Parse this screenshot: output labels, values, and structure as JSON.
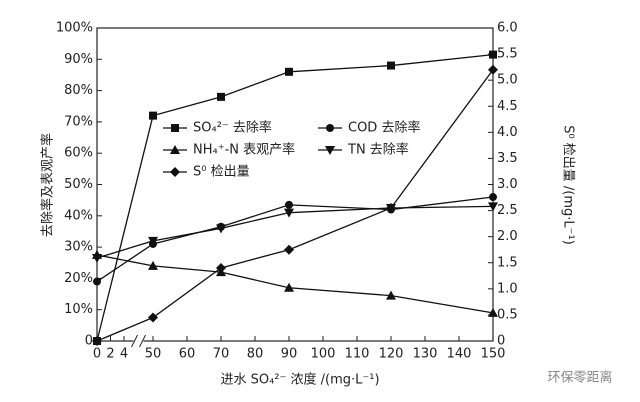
{
  "chart_data": {
    "type": "line",
    "xlabel": "进水 SO₄²⁻ 浓度 /(mg·L⁻¹)",
    "ylabel": "去除率及表观产率",
    "y2label": "S⁰ 检出量 /(mg·L⁻¹)",
    "watermark": "环保零距离",
    "x": [
      0,
      50,
      70,
      90,
      120,
      150
    ],
    "xlim": [
      0,
      150
    ],
    "x_break": [
      4,
      50
    ],
    "xticks": [
      0,
      2,
      4,
      50,
      60,
      70,
      80,
      90,
      100,
      110,
      120,
      130,
      140,
      150
    ],
    "ylim": [
      0,
      100
    ],
    "yticks": [
      0,
      {
        "value": 10,
        "label": "10%"
      },
      {
        "value": 20,
        "label": "20%"
      },
      {
        "value": 30,
        "label": "30%"
      },
      {
        "value": 40,
        "label": "40%"
      },
      {
        "value": 50,
        "label": "50%"
      },
      {
        "value": 60,
        "label": "60%"
      },
      {
        "value": 70,
        "label": "70%"
      },
      {
        "value": 80,
        "label": "80%"
      },
      {
        "value": 90,
        "label": "90%"
      },
      {
        "value": 100,
        "label": "100%"
      }
    ],
    "y2lim": [
      0,
      6
    ],
    "y2ticks": [
      0,
      0.5,
      {
        "value": 1,
        "label": "1.0"
      },
      1.5,
      {
        "value": 2,
        "label": "2.0"
      },
      2.5,
      {
        "value": 3,
        "label": "3.0"
      },
      3.5,
      {
        "value": 4,
        "label": "4.0"
      },
      4.5,
      {
        "value": 5,
        "label": "5.0"
      },
      5.5,
      {
        "value": 6,
        "label": "6.0"
      }
    ],
    "series": [
      {
        "name": "SO₄²⁻ 去除率",
        "color": "#111",
        "marker": "square",
        "values": [
          0,
          72,
          78,
          86,
          88,
          91.5
        ]
      },
      {
        "name": "COD 去除率",
        "color": "#111",
        "marker": "circle",
        "values": [
          19,
          31,
          36.5,
          43.5,
          42,
          46
        ]
      },
      {
        "name": "NH₄⁺-N 表观产率",
        "color": "#111",
        "marker": "triangle-up",
        "values": [
          27.5,
          24,
          22,
          17,
          14.5,
          9
        ]
      },
      {
        "name": "TN 去除率",
        "color": "#111",
        "marker": "triangle-down",
        "values": [
          26.5,
          32,
          36,
          41,
          42.5,
          43
        ]
      },
      {
        "name": "S⁰ 检出量",
        "color": "#111",
        "marker": "diamond",
        "axis": "y2",
        "values": [
          0,
          0.45,
          1.4,
          1.75,
          2.55,
          5.2
        ]
      }
    ]
  }
}
